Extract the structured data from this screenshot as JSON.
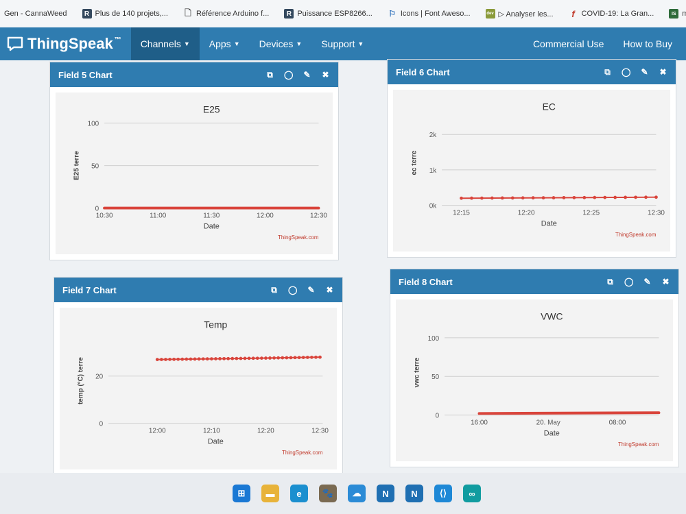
{
  "bookmarks": [
    {
      "label": "Gen - CannaWeed",
      "icon": "none"
    },
    {
      "label": "Plus de 140 projets,...",
      "icon": "r-icon",
      "glyph": "R",
      "color": "#34495e"
    },
    {
      "label": "Référence Arduino f...",
      "icon": "page-icon",
      "glyph": "🗋",
      "color": "#666666"
    },
    {
      "label": "Puissance ESP8266...",
      "icon": "r-icon",
      "glyph": "R",
      "color": "#34495e"
    },
    {
      "label": "Icons | Font Aweso...",
      "icon": "flag-icon",
      "glyph": "⚐",
      "color": "#2a6ebb"
    },
    {
      "label": "▷ Analyser les...",
      "icon": "dev-icon",
      "glyph": "dev",
      "color": "#8a9a3a"
    },
    {
      "label": "COVID-19: La Gran...",
      "icon": "f-icon",
      "glyph": "f",
      "color": "#c0392b"
    },
    {
      "label": "memory-ma",
      "icon": "is-icon",
      "glyph": "IS",
      "color": "#2e6b3a"
    }
  ],
  "nav": {
    "brand": "ThingSpeak",
    "tm": "™",
    "items": [
      {
        "label": "Channels",
        "active": true
      },
      {
        "label": "Apps",
        "active": false
      },
      {
        "label": "Devices",
        "active": false
      },
      {
        "label": "Support",
        "active": false
      }
    ],
    "right": [
      "Commercial Use",
      "How to Buy"
    ]
  },
  "widgets": [
    {
      "header": "Field 5 Chart"
    },
    {
      "header": "Field 6 Chart"
    },
    {
      "header": "Field 7 Chart"
    },
    {
      "header": "Field 8 Chart"
    }
  ],
  "colors": {
    "nav": "#2f7cb0",
    "series": "#d9443b",
    "grid": "#cfcfcf"
  },
  "chart_data": [
    {
      "type": "line",
      "title": "E25",
      "xlabel": "Date",
      "ylabel": "E25 terre",
      "credit": "ThingSpeak.com",
      "ylim": [
        0,
        100
      ],
      "yticks": [
        0,
        50,
        100
      ],
      "xticks": [
        "10:30",
        "11:00",
        "11:30",
        "12:00",
        "12:30"
      ],
      "xrange": [
        0,
        4
      ],
      "x": [
        0,
        4
      ],
      "y": [
        0,
        0
      ],
      "markers": false
    },
    {
      "type": "line",
      "title": "EC",
      "xlabel": "Date",
      "ylabel": "ec terre",
      "credit": "ThingSpeak.com",
      "ylim": [
        0,
        2400
      ],
      "yticks": [
        0,
        1000,
        2000
      ],
      "ytick_labels": [
        "0k",
        "1k",
        "2k"
      ],
      "xticks": [
        "12:15",
        "12:20",
        "12:25",
        "12:30"
      ],
      "xrange": [
        -0.3,
        3
      ],
      "x": [
        0,
        0.5,
        1,
        1.5,
        2,
        2.5,
        3
      ],
      "y": [
        200,
        205,
        210,
        215,
        220,
        225,
        230
      ],
      "markers": true,
      "n_points": 20
    },
    {
      "type": "line",
      "title": "Temp",
      "xlabel": "Date",
      "ylabel": "temp (°C) terre",
      "credit": "ThingSpeak.com",
      "ylim": [
        0,
        36
      ],
      "yticks": [
        0,
        20
      ],
      "xticks": [
        "12:00",
        "12:10",
        "12:20",
        "12:30"
      ],
      "xrange": [
        -0.9,
        3.05
      ],
      "x": [
        0,
        1,
        2,
        3
      ],
      "y": [
        27,
        27.3,
        27.6,
        28
      ],
      "markers": true,
      "n_points": 40
    },
    {
      "type": "line",
      "title": "VWC",
      "xlabel": "Date",
      "ylabel": "vwc terre",
      "credit": "ThingSpeak.com",
      "ylim": [
        0,
        110
      ],
      "yticks": [
        0,
        50,
        100
      ],
      "xticks": [
        "16:00",
        "20. May",
        "08:00"
      ],
      "xrange": [
        -0.5,
        2.6
      ],
      "x": [
        0,
        2.6
      ],
      "y": [
        2,
        3
      ],
      "markers": false
    }
  ],
  "taskbar": [
    {
      "name": "windows-start-icon",
      "glyph": "⊞",
      "color": "#1a78d4"
    },
    {
      "name": "file-explorer-icon",
      "glyph": "▬",
      "color": "#e8b33a"
    },
    {
      "name": "edge-browser-icon",
      "glyph": "e",
      "color": "#1b8fcf"
    },
    {
      "name": "gimp-icon",
      "glyph": "🐾",
      "color": "#7a6a52"
    },
    {
      "name": "cloud-app-icon",
      "glyph": "☁",
      "color": "#2b8bd6"
    },
    {
      "name": "n-app-icon",
      "glyph": "N",
      "color": "#1f6fb2"
    },
    {
      "name": "n-app-icon-2",
      "glyph": "N",
      "color": "#1f6fb2"
    },
    {
      "name": "vscode-icon",
      "glyph": "⟨⟩",
      "color": "#1e88d6"
    },
    {
      "name": "arduino-icon",
      "glyph": "∞",
      "color": "#119ca0"
    }
  ]
}
